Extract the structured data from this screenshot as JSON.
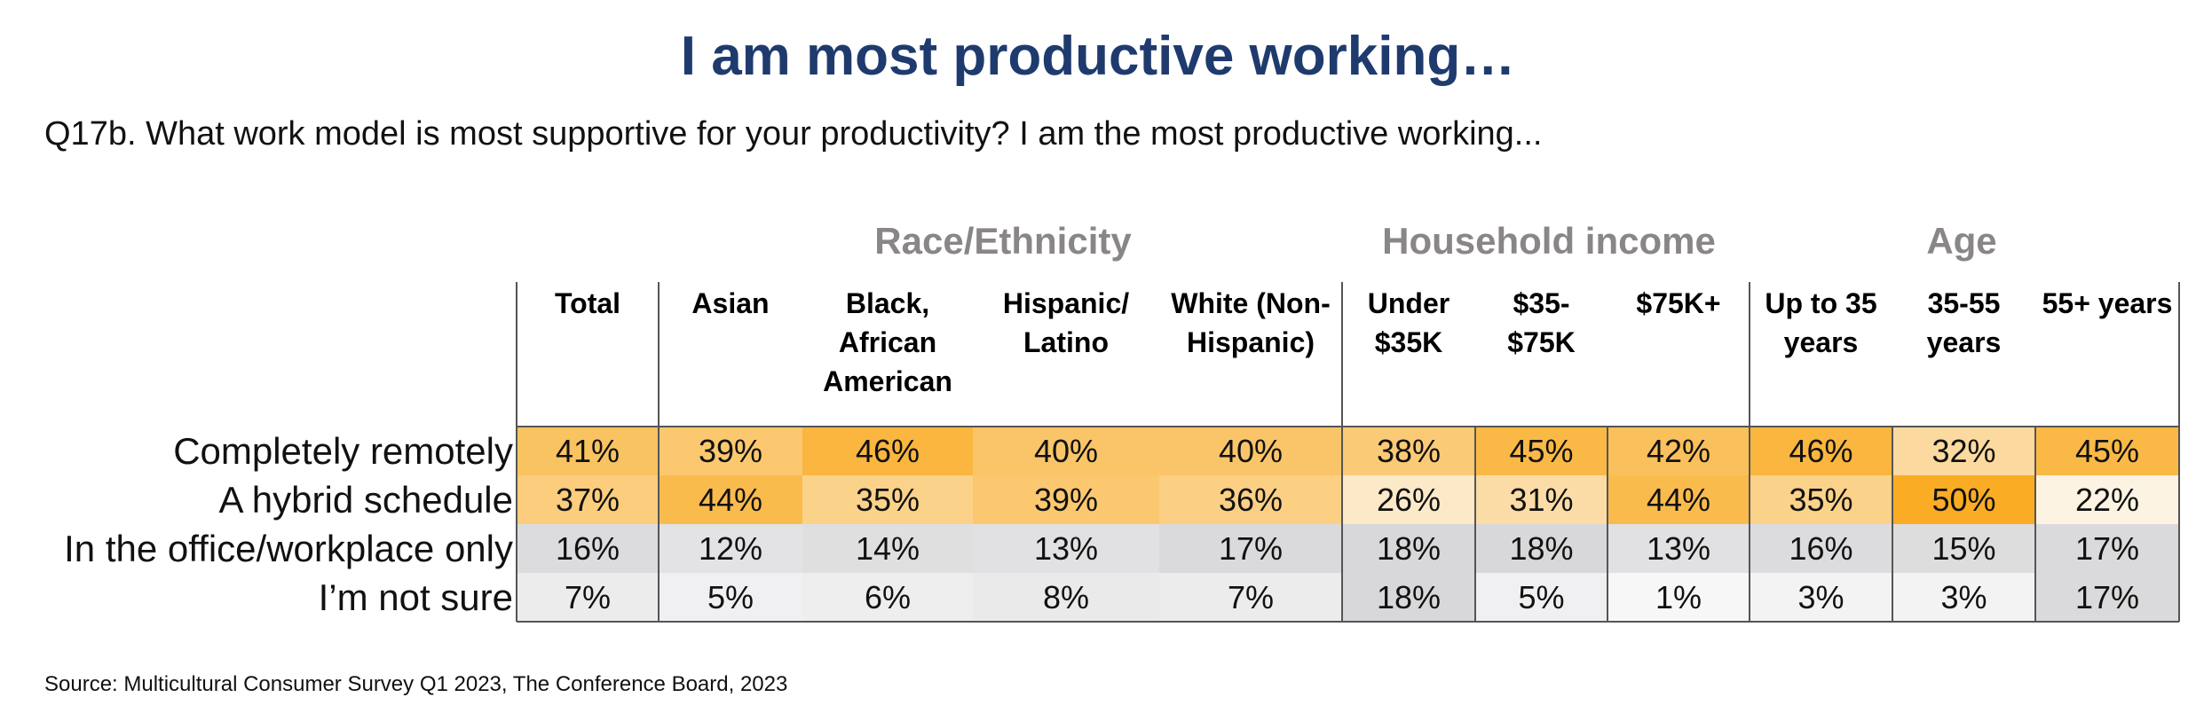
{
  "title": "I am most productive working…",
  "subtitle": "Q17b. What work model is most supportive for your productivity? I am the most productive working...",
  "source": "Source: Multicultural Consumer Survey Q1 2023, The Conference Board, 2023",
  "colors": {
    "title": "#1f3b6e",
    "group_header": "#8a8686",
    "heat_low": "#fdf3e3",
    "heat_high": "#f9ac24",
    "gray_low": "#f7f7f8",
    "gray_high": "#d8d7d9"
  },
  "chart_data": {
    "type": "heatmap",
    "title": "I am most productive working…",
    "groups": [
      "Race/Ethnicity",
      "Household income",
      "Age"
    ],
    "columns": [
      {
        "label": "Total",
        "group": ""
      },
      {
        "label": "Asian",
        "group": "Race/Ethnicity"
      },
      {
        "label": "Black, African American",
        "group": "Race/Ethnicity"
      },
      {
        "label": "Hispanic/ Latino",
        "group": "Race/Ethnicity"
      },
      {
        "label": "White (Non- Hispanic)",
        "group": "Race/Ethnicity"
      },
      {
        "label": "Under $35K",
        "group": "Household income"
      },
      {
        "label": "$35- $75K",
        "group": "Household income"
      },
      {
        "label": "$75K+",
        "group": "Household income"
      },
      {
        "label": "Up to 35 years",
        "group": "Age"
      },
      {
        "label": "35-55 years",
        "group": "Age"
      },
      {
        "label": "55+ years",
        "group": "Age"
      }
    ],
    "rows": [
      {
        "label": "Completely remotely",
        "scale": "orange",
        "values": [
          41,
          39,
          46,
          40,
          40,
          38,
          45,
          42,
          46,
          32,
          45
        ]
      },
      {
        "label": "A hybrid schedule",
        "scale": "orange",
        "values": [
          37,
          44,
          35,
          39,
          36,
          26,
          31,
          44,
          35,
          50,
          22
        ]
      },
      {
        "label": "In the office/workplace only",
        "scale": "gray",
        "values": [
          16,
          12,
          14,
          13,
          17,
          18,
          18,
          13,
          16,
          15,
          17
        ]
      },
      {
        "label": "I’m not sure",
        "scale": "gray",
        "values": [
          7,
          5,
          6,
          8,
          7,
          18,
          5,
          1,
          3,
          3,
          17
        ]
      }
    ],
    "value_suffix": "%"
  }
}
